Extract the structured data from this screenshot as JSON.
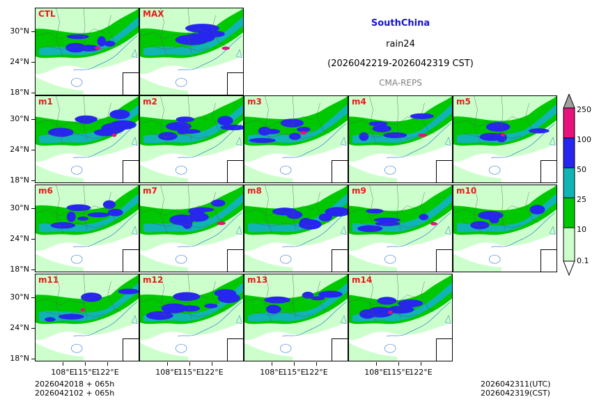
{
  "title": {
    "region": "SouthChina",
    "variable": "rain24",
    "period": "(2026042219-2026042319 CST)",
    "model": "CMA-REPS"
  },
  "panels": [
    {
      "label": "CTL"
    },
    {
      "label": "MAX"
    },
    {
      "label": "m1"
    },
    {
      "label": "m2"
    },
    {
      "label": "m3"
    },
    {
      "label": "m4"
    },
    {
      "label": "m5"
    },
    {
      "label": "m6"
    },
    {
      "label": "m7"
    },
    {
      "label": "m8"
    },
    {
      "label": "m9"
    },
    {
      "label": "m10"
    },
    {
      "label": "m11"
    },
    {
      "label": "m12"
    },
    {
      "label": "m13"
    },
    {
      "label": "m14"
    }
  ],
  "y_ticks": [
    "30°N",
    "24°N",
    "18°N"
  ],
  "x_ticks": [
    "108°E",
    "115°E",
    "122°E"
  ],
  "colorbar": {
    "levels": [
      "0.1",
      "10",
      "25",
      "50",
      "100",
      "250"
    ],
    "colors": [
      "#ccffcc",
      "#00c800",
      "#10b4b4",
      "#2626ee",
      "#e8127c",
      "#a0a0a0"
    ]
  },
  "footer": {
    "init_line1": "2026042018  +  065h",
    "init_line2": "2026042102  +  065h",
    "valid_utc": "2026042311(UTC)",
    "valid_cst": "2026042319(CST)"
  }
}
